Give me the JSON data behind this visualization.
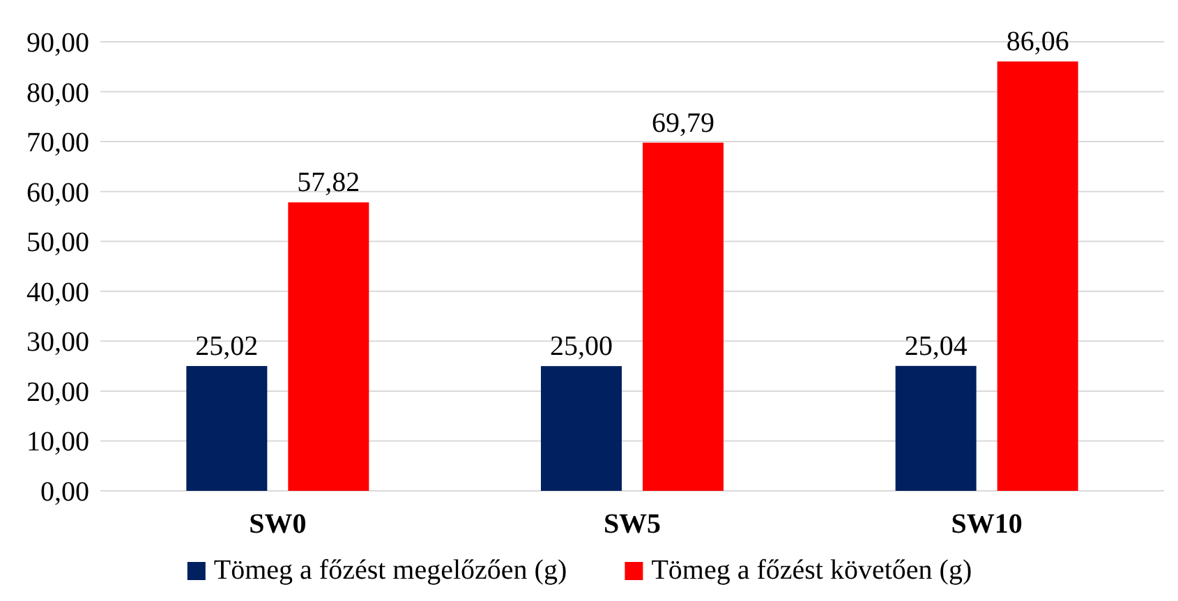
{
  "chart_data": {
    "type": "bar",
    "categories": [
      "SW0",
      "SW5",
      "SW10"
    ],
    "series": [
      {
        "name": "Tömeg a főzést megelőzően (g)",
        "color": "#002060",
        "values": [
          25.02,
          25.0,
          25.04
        ],
        "value_labels": [
          "25,02",
          "25,00",
          "25,04"
        ]
      },
      {
        "name": "Tömeg a főzést követően (g)",
        "color": "#ff0000",
        "values": [
          57.82,
          69.79,
          86.06
        ],
        "value_labels": [
          "57,82",
          "69,79",
          "86,06"
        ]
      }
    ],
    "ylim": [
      0,
      90
    ],
    "yticks": [
      {
        "value": 0,
        "label": "0,00"
      },
      {
        "value": 10,
        "label": "10,00"
      },
      {
        "value": 20,
        "label": "20,00"
      },
      {
        "value": 30,
        "label": "30,00"
      },
      {
        "value": 40,
        "label": "40,00"
      },
      {
        "value": 50,
        "label": "50,00"
      },
      {
        "value": 60,
        "label": "60,00"
      },
      {
        "value": 70,
        "label": "70,00"
      },
      {
        "value": 80,
        "label": "80,00"
      },
      {
        "value": 90,
        "label": "90,00"
      }
    ],
    "grid": "y",
    "legend": "bottom"
  }
}
